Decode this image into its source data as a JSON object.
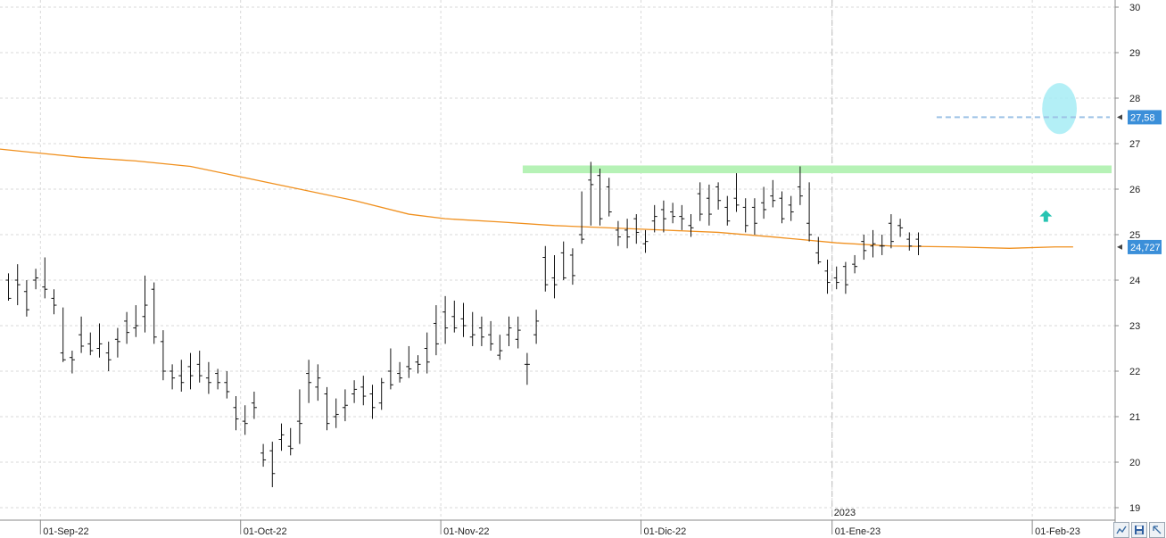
{
  "chart_data": {
    "type": "ohlc",
    "y_ticks": [
      30,
      29,
      28,
      27,
      26,
      25,
      24,
      23,
      22,
      21,
      20,
      19
    ],
    "ylim": [
      18.85,
      30.15
    ],
    "y_tick_labels": [
      "30",
      "29",
      "28",
      "27",
      "26",
      "25",
      "24",
      "23",
      "22",
      "21",
      "20",
      "19"
    ],
    "x_tick_labels": [
      {
        "index": 4,
        "label": "01-Sep-22"
      },
      {
        "index": 26,
        "label": "01-Oct-22"
      },
      {
        "index": 48,
        "label": "01-Nov-22"
      },
      {
        "index": 70,
        "label": "01-Dic-22"
      },
      {
        "index": 91,
        "label": "01-Ene-23"
      },
      {
        "index": 113,
        "label": "01-Feb-23"
      }
    ],
    "year_label": "2023",
    "year_separator_index": 91,
    "grid": true,
    "price_tag": {
      "value": 27.58,
      "label": "27,58",
      "color": "#3b8fd9"
    },
    "ma_tag": {
      "value": 24.727,
      "label": "24,727",
      "color": "#3b8fd9"
    },
    "moving_average": {
      "color": "#f0901e",
      "points": [
        [
          -1,
          26.88
        ],
        [
          4,
          26.78
        ],
        [
          8,
          26.7
        ],
        [
          14,
          26.62
        ],
        [
          20,
          26.5
        ],
        [
          26,
          26.25
        ],
        [
          32,
          26.0
        ],
        [
          38,
          25.75
        ],
        [
          44,
          25.45
        ],
        [
          48,
          25.35
        ],
        [
          54,
          25.28
        ],
        [
          60,
          25.2
        ],
        [
          66,
          25.15
        ],
        [
          72,
          25.1
        ],
        [
          78,
          25.05
        ],
        [
          84,
          24.95
        ],
        [
          91,
          24.82
        ],
        [
          97,
          24.75
        ],
        [
          104,
          24.73
        ],
        [
          110,
          24.7
        ],
        [
          115,
          24.73
        ],
        [
          117,
          24.73
        ]
      ]
    },
    "support_zone": {
      "from_index": 57,
      "to_index": 117,
      "low": 26.35,
      "high": 26.52,
      "color": "#b6f2b6"
    },
    "dashed_level": {
      "from_index": 102,
      "to_index": 117,
      "value": 27.58,
      "color": "#9ec3e6"
    },
    "highlight_ellipse": {
      "center_index": 115.5,
      "center_value": 27.77,
      "rx": 1.9,
      "ry": 0.56,
      "color": "#a6ecf4"
    },
    "arrow": {
      "index": 114,
      "value": 25.4,
      "color": "#27c4b2"
    },
    "ohlc": [
      [
        24.0,
        24.15,
        23.55,
        23.6
      ],
      [
        24.0,
        24.35,
        23.45,
        23.9
      ],
      [
        23.75,
        24.0,
        23.2,
        23.35
      ],
      [
        24.0,
        24.25,
        23.8,
        24.05
      ],
      [
        23.85,
        24.5,
        23.6,
        23.8
      ],
      [
        23.6,
        23.8,
        23.25,
        23.45
      ],
      [
        22.4,
        23.4,
        22.2,
        22.25
      ],
      [
        22.3,
        22.45,
        21.95,
        22.25
      ],
      [
        22.8,
        23.2,
        22.4,
        22.55
      ],
      [
        22.6,
        22.85,
        22.35,
        22.45
      ],
      [
        22.5,
        23.05,
        22.3,
        22.6
      ],
      [
        22.4,
        22.65,
        22.0,
        22.25
      ],
      [
        22.7,
        22.95,
        22.3,
        22.65
      ],
      [
        23.1,
        23.3,
        22.6,
        22.85
      ],
      [
        22.95,
        23.45,
        22.75,
        23.0
      ],
      [
        23.2,
        24.1,
        22.85,
        23.45
      ],
      [
        23.8,
        23.95,
        22.6,
        22.75
      ],
      [
        22.65,
        22.9,
        21.8,
        22.0
      ],
      [
        22.0,
        22.15,
        21.6,
        21.85
      ],
      [
        21.9,
        22.25,
        21.55,
        21.75
      ],
      [
        22.1,
        22.4,
        21.6,
        21.9
      ],
      [
        22.15,
        22.45,
        21.75,
        21.9
      ],
      [
        21.85,
        22.2,
        21.5,
        21.75
      ],
      [
        21.95,
        22.05,
        21.6,
        21.75
      ],
      [
        21.75,
        22.0,
        21.4,
        21.55
      ],
      [
        21.2,
        21.45,
        20.7,
        20.95
      ],
      [
        20.9,
        21.25,
        20.6,
        20.85
      ],
      [
        21.3,
        21.55,
        20.95,
        21.2
      ],
      [
        20.2,
        20.4,
        19.9,
        20.05
      ],
      [
        20.25,
        20.45,
        19.45,
        19.75
      ],
      [
        20.5,
        20.85,
        20.25,
        20.6
      ],
      [
        20.35,
        20.75,
        20.15,
        20.3
      ],
      [
        20.9,
        21.6,
        20.4,
        20.85
      ],
      [
        21.95,
        22.25,
        21.3,
        21.75
      ],
      [
        21.65,
        22.15,
        21.35,
        21.85
      ],
      [
        21.5,
        21.65,
        20.7,
        20.85
      ],
      [
        21.0,
        21.4,
        20.75,
        21.05
      ],
      [
        21.2,
        21.6,
        20.9,
        21.25
      ],
      [
        21.5,
        21.8,
        21.3,
        21.6
      ],
      [
        21.65,
        21.9,
        21.25,
        21.45
      ],
      [
        21.5,
        21.7,
        20.95,
        21.2
      ],
      [
        21.3,
        21.85,
        21.15,
        21.75
      ],
      [
        22.0,
        22.5,
        21.6,
        21.7
      ],
      [
        21.95,
        22.2,
        21.75,
        21.85
      ],
      [
        22.1,
        22.55,
        21.85,
        22.05
      ],
      [
        22.2,
        22.35,
        21.95,
        22.15
      ],
      [
        22.5,
        22.85,
        21.95,
        22.2
      ],
      [
        23.05,
        23.45,
        22.35,
        22.6
      ],
      [
        23.3,
        23.65,
        22.6,
        22.95
      ],
      [
        23.2,
        23.55,
        22.85,
        22.95
      ],
      [
        23.15,
        23.5,
        22.75,
        23.0
      ],
      [
        22.75,
        23.3,
        22.55,
        22.8
      ],
      [
        22.95,
        23.2,
        22.55,
        22.75
      ],
      [
        22.8,
        23.1,
        22.45,
        22.6
      ],
      [
        22.35,
        22.8,
        22.25,
        22.45
      ],
      [
        22.8,
        23.2,
        22.55,
        22.95
      ],
      [
        22.7,
        23.2,
        22.5,
        22.9
      ],
      [
        22.15,
        22.4,
        21.7,
        22.15
      ],
      [
        22.8,
        23.35,
        22.6,
        23.1
      ],
      [
        24.5,
        24.75,
        23.75,
        23.9
      ],
      [
        24.05,
        24.55,
        23.6,
        23.9
      ],
      [
        24.6,
        24.85,
        24.0,
        24.05
      ],
      [
        24.55,
        24.7,
        23.9,
        24.1
      ],
      [
        25.0,
        25.95,
        24.8,
        24.9
      ],
      [
        26.2,
        26.6,
        25.2,
        26.1
      ],
      [
        26.3,
        26.45,
        25.2,
        25.35
      ],
      [
        26.05,
        26.25,
        25.4,
        25.5
      ],
      [
        25.1,
        25.3,
        24.75,
        24.95
      ],
      [
        25.1,
        25.35,
        24.7,
        24.95
      ],
      [
        25.35,
        25.45,
        24.8,
        25.05
      ],
      [
        24.8,
        25.1,
        24.6,
        24.85
      ],
      [
        25.3,
        25.65,
        25.05,
        25.4
      ],
      [
        25.55,
        25.75,
        25.05,
        25.35
      ],
      [
        25.5,
        25.7,
        25.25,
        25.4
      ],
      [
        25.4,
        25.65,
        25.1,
        25.35
      ],
      [
        25.2,
        25.45,
        24.95,
        25.15
      ],
      [
        25.9,
        26.15,
        25.3,
        25.45
      ],
      [
        25.8,
        26.1,
        25.2,
        25.45
      ],
      [
        26.05,
        26.15,
        25.55,
        25.75
      ],
      [
        25.6,
        25.85,
        25.2,
        25.3
      ],
      [
        25.8,
        26.35,
        25.5,
        25.65
      ],
      [
        25.6,
        25.8,
        25.05,
        25.2
      ],
      [
        25.6,
        25.8,
        25.0,
        25.25
      ],
      [
        25.7,
        26.05,
        25.35,
        25.55
      ],
      [
        25.85,
        26.2,
        25.6,
        25.75
      ],
      [
        25.8,
        25.95,
        25.25,
        25.35
      ],
      [
        25.65,
        25.85,
        25.3,
        25.5
      ],
      [
        26.05,
        26.5,
        25.65,
        25.85
      ],
      [
        25.25,
        26.15,
        24.85,
        25.0
      ],
      [
        24.6,
        24.95,
        24.35,
        24.4
      ],
      [
        24.2,
        24.45,
        23.7,
        23.95
      ],
      [
        24.05,
        24.3,
        23.8,
        23.95
      ],
      [
        24.3,
        24.4,
        23.7,
        23.9
      ],
      [
        24.35,
        24.55,
        24.15,
        24.3
      ],
      [
        24.85,
        25.0,
        24.45,
        24.65
      ],
      [
        24.75,
        25.1,
        24.5,
        24.8
      ],
      [
        24.75,
        25.0,
        24.55,
        24.75
      ],
      [
        25.25,
        25.45,
        24.7,
        24.85
      ],
      [
        25.2,
        25.35,
        24.95,
        25.15
      ],
      [
        24.9,
        25.05,
        24.65,
        24.75
      ],
      [
        24.9,
        25.05,
        24.55,
        24.75
      ]
    ]
  },
  "toolbar": {
    "zoom_tooltip": "",
    "save_tooltip": "",
    "expand_tooltip": ""
  },
  "colors": {
    "bar": "#111111",
    "grid": "#d9d9d9",
    "axis": "#888888",
    "year_line": "#bdbdbd"
  }
}
